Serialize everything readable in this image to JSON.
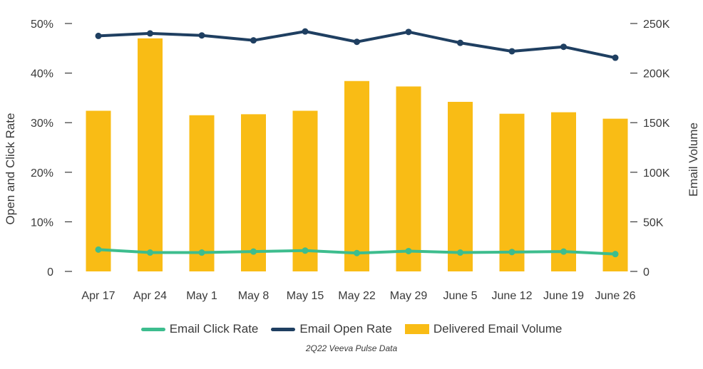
{
  "chart_data": {
    "type": "bar+line",
    "categories": [
      "Apr 17",
      "Apr 24",
      "May 1",
      "May 8",
      "May 15",
      "May 22",
      "May 29",
      "June 5",
      "June 12",
      "June 19",
      "June 26"
    ],
    "bar_series": {
      "name": "Delivered Email Volume",
      "axis": "right",
      "color": "#f9bc15",
      "values": [
        162000,
        235000,
        157500,
        158500,
        162000,
        192000,
        186500,
        171000,
        159000,
        160500,
        154000
      ]
    },
    "line_series": [
      {
        "name": "Email Click Rate",
        "axis": "left",
        "color": "#3dbd8e",
        "values": [
          4.4,
          3.8,
          3.8,
          4.0,
          4.2,
          3.7,
          4.1,
          3.8,
          3.9,
          4.0,
          3.5
        ]
      },
      {
        "name": "Email Open Rate",
        "axis": "left",
        "color": "#1f3f61",
        "values": [
          47.5,
          48.0,
          47.6,
          46.6,
          48.4,
          46.3,
          48.3,
          46.1,
          44.4,
          45.3,
          43.1
        ]
      }
    ],
    "ylabel_left": "Open and Click Rate",
    "ylabel_right": "Email Volume",
    "ylim_left": [
      0,
      50
    ],
    "ylim_right": [
      0,
      250000
    ],
    "yticks_left": [
      "0",
      "10%",
      "20%",
      "30%",
      "40%",
      "50%"
    ],
    "yticks_right": [
      "0",
      "50K",
      "100K",
      "150K",
      "200K",
      "250K"
    ],
    "legend_position": "bottom",
    "source": "2Q22 Veeva Pulse Data"
  },
  "legend": [
    {
      "label": "Email Click Rate",
      "color": "#3dbd8e",
      "kind": "line"
    },
    {
      "label": "Email Open Rate",
      "color": "#1f3f61",
      "kind": "line"
    },
    {
      "label": "Delivered Email Volume",
      "color": "#f9bc15",
      "kind": "box"
    }
  ]
}
